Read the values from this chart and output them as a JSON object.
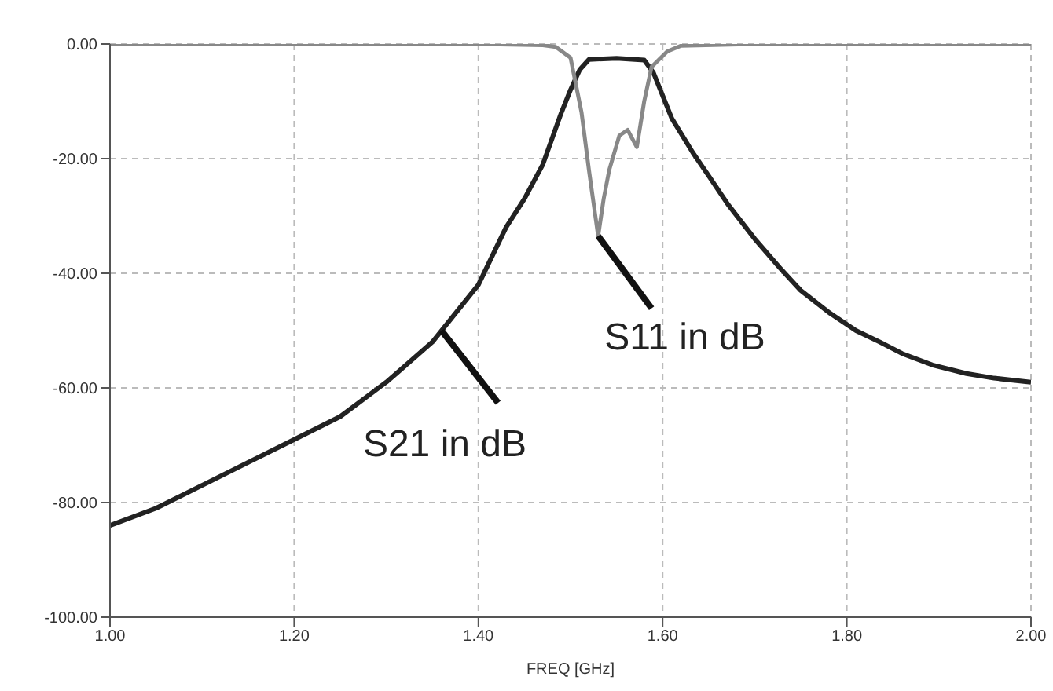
{
  "chart_data": {
    "type": "line",
    "xlabel": "FREQ [GHz]",
    "xlim": [
      1.0,
      2.0
    ],
    "ylim": [
      -100,
      0
    ],
    "xticks": [
      {
        "value": 1.0,
        "label": "1.00"
      },
      {
        "value": 1.2,
        "label": "1.20"
      },
      {
        "value": 1.4,
        "label": "1.40"
      },
      {
        "value": 1.6,
        "label": "1.60"
      },
      {
        "value": 1.8,
        "label": "1.80"
      },
      {
        "value": 2.0,
        "label": "2.00"
      }
    ],
    "yticks": [
      {
        "value": 0,
        "label": "0.00"
      },
      {
        "value": -20,
        "label": "-20.00"
      },
      {
        "value": -40,
        "label": "-40.00"
      },
      {
        "value": -60,
        "label": "-60.00"
      },
      {
        "value": -80,
        "label": "-80.00"
      },
      {
        "value": -100,
        "label": "-100.00"
      }
    ],
    "grid": true,
    "marker": "none",
    "line_style": "solid",
    "series": [
      {
        "color": "#222222",
        "x": [
          1.0,
          1.05,
          1.1,
          1.15,
          1.2,
          1.25,
          1.3,
          1.35,
          1.4,
          1.43,
          1.45,
          1.47,
          1.49,
          1.5,
          1.51,
          1.52,
          1.55,
          1.58,
          1.59,
          1.6,
          1.61,
          1.633,
          1.65,
          1.671,
          1.7,
          1.727,
          1.75,
          1.782,
          1.81,
          1.836,
          1.86,
          1.893,
          1.93,
          1.96,
          2.0
        ],
        "values": [
          -84,
          -81,
          -77,
          -73,
          -69,
          -65,
          -59,
          -52,
          -42,
          -32,
          -27,
          -21,
          -12,
          -8,
          -4.5,
          -2.7,
          -2.5,
          -2.8,
          -5,
          -9,
          -13,
          -19,
          -23,
          -28,
          -34,
          -39,
          -43,
          -47,
          -50,
          -52,
          -54,
          -56,
          -57.5,
          -58.3,
          -59
        ]
      },
      {
        "color": "#888888",
        "x": [
          1.0,
          1.2,
          1.4,
          1.47,
          1.484,
          1.5,
          1.512,
          1.52,
          1.53,
          1.536,
          1.542,
          1.553,
          1.562,
          1.572,
          1.58,
          1.588,
          1.605,
          1.62,
          1.7,
          1.8,
          1.9,
          2.0
        ],
        "values": [
          0,
          0,
          0,
          -0.2,
          -0.5,
          -2.4,
          -12,
          -22,
          -33.5,
          -27,
          -22,
          -16,
          -15,
          -18,
          -10,
          -4,
          -1.3,
          -0.3,
          0,
          0,
          0,
          0
        ]
      }
    ],
    "annotations": [
      {
        "text": "S21 in dB",
        "x": 1.36,
        "y": -50
      },
      {
        "text": "S11 in dB",
        "x": 1.53,
        "y": -33.5
      }
    ]
  }
}
